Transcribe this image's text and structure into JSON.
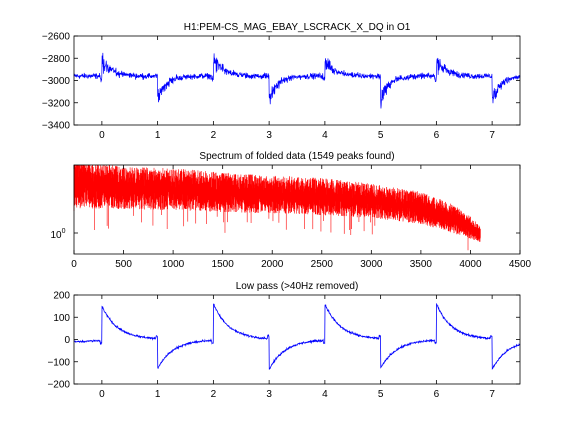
{
  "figure": {
    "background": "#ffffff"
  },
  "chart_data": [
    {
      "type": "line",
      "title": "H1:PEM-CS_MAG_EBAY_LSCRACK_X_DQ in O1",
      "xlabel": "",
      "ylabel": "",
      "xlim": [
        -0.5,
        7.5
      ],
      "ylim": [
        -3400,
        -2600
      ],
      "xticks": [
        "0",
        "1",
        "2",
        "3",
        "4",
        "5",
        "6",
        "7"
      ],
      "yticks": [
        "-2600",
        "-2800",
        "-3000",
        "-3200",
        "-3400"
      ],
      "color": "#0000ff",
      "grid": false,
      "description_series": {
        "name": "",
        "baseline": -2960,
        "pulses": [
          {
            "x": 0.0,
            "peak": -2760,
            "dip": -3060
          },
          {
            "x": 1.0,
            "peak": -3010,
            "dip": -3250
          },
          {
            "x": 2.0,
            "peak": -2750,
            "dip": -3060
          },
          {
            "x": 3.0,
            "peak": -3000,
            "dip": -3250
          },
          {
            "x": 4.0,
            "peak": -2760,
            "dip": -3060
          },
          {
            "x": 5.0,
            "peak": -3010,
            "dip": -3250
          },
          {
            "x": 6.0,
            "peak": -2760,
            "dip": -3060
          },
          {
            "x": 7.0,
            "peak": -3000,
            "dip": -3250
          }
        ]
      }
    },
    {
      "type": "line",
      "title": "Spectrum of folded data (1549 peaks found)",
      "xlabel": "",
      "ylabel": "",
      "xlim": [
        0,
        4500
      ],
      "yscale": "log",
      "xticks": [
        "0",
        "500",
        "1000",
        "1500",
        "2000",
        "2500",
        "3000",
        "3500",
        "4000",
        "4500"
      ],
      "ytick_label": "10",
      "ytick_exponent": "0",
      "color": "#ff0000",
      "grid": false,
      "envelope": {
        "x": [
          0,
          500,
          1000,
          1500,
          2000,
          2500,
          3000,
          3500,
          3800,
          4000,
          4100
        ],
        "upper_log10": [
          1.35,
          1.2,
          1.18,
          1.1,
          1.05,
          1.0,
          0.9,
          0.75,
          0.55,
          0.3,
          0.12
        ],
        "lower_log10": [
          0.35,
          0.35,
          0.33,
          0.3,
          0.28,
          0.25,
          0.2,
          0.1,
          -0.05,
          -0.15,
          -0.2
        ]
      }
    },
    {
      "type": "line",
      "title": "Low pass (>40Hz removed)",
      "xlabel": "",
      "ylabel": "",
      "xlim": [
        -0.5,
        7.5
      ],
      "ylim": [
        -200,
        200
      ],
      "xticks": [
        "0",
        "1",
        "2",
        "3",
        "4",
        "5",
        "6",
        "7"
      ],
      "yticks": [
        "200",
        "100",
        "0",
        "-100",
        "-200"
      ],
      "color": "#0000ff",
      "grid": false,
      "pulses": [
        {
          "x": 0.0,
          "peak": 150,
          "sign": 1
        },
        {
          "x": 1.0,
          "peak": -130,
          "sign": -1
        },
        {
          "x": 2.0,
          "peak": 160,
          "sign": 1
        },
        {
          "x": 3.0,
          "peak": -135,
          "sign": -1
        },
        {
          "x": 4.0,
          "peak": 160,
          "sign": 1
        },
        {
          "x": 5.0,
          "peak": -130,
          "sign": -1
        },
        {
          "x": 6.0,
          "peak": 160,
          "sign": 1
        },
        {
          "x": 7.0,
          "peak": -135,
          "sign": -1
        }
      ]
    }
  ]
}
